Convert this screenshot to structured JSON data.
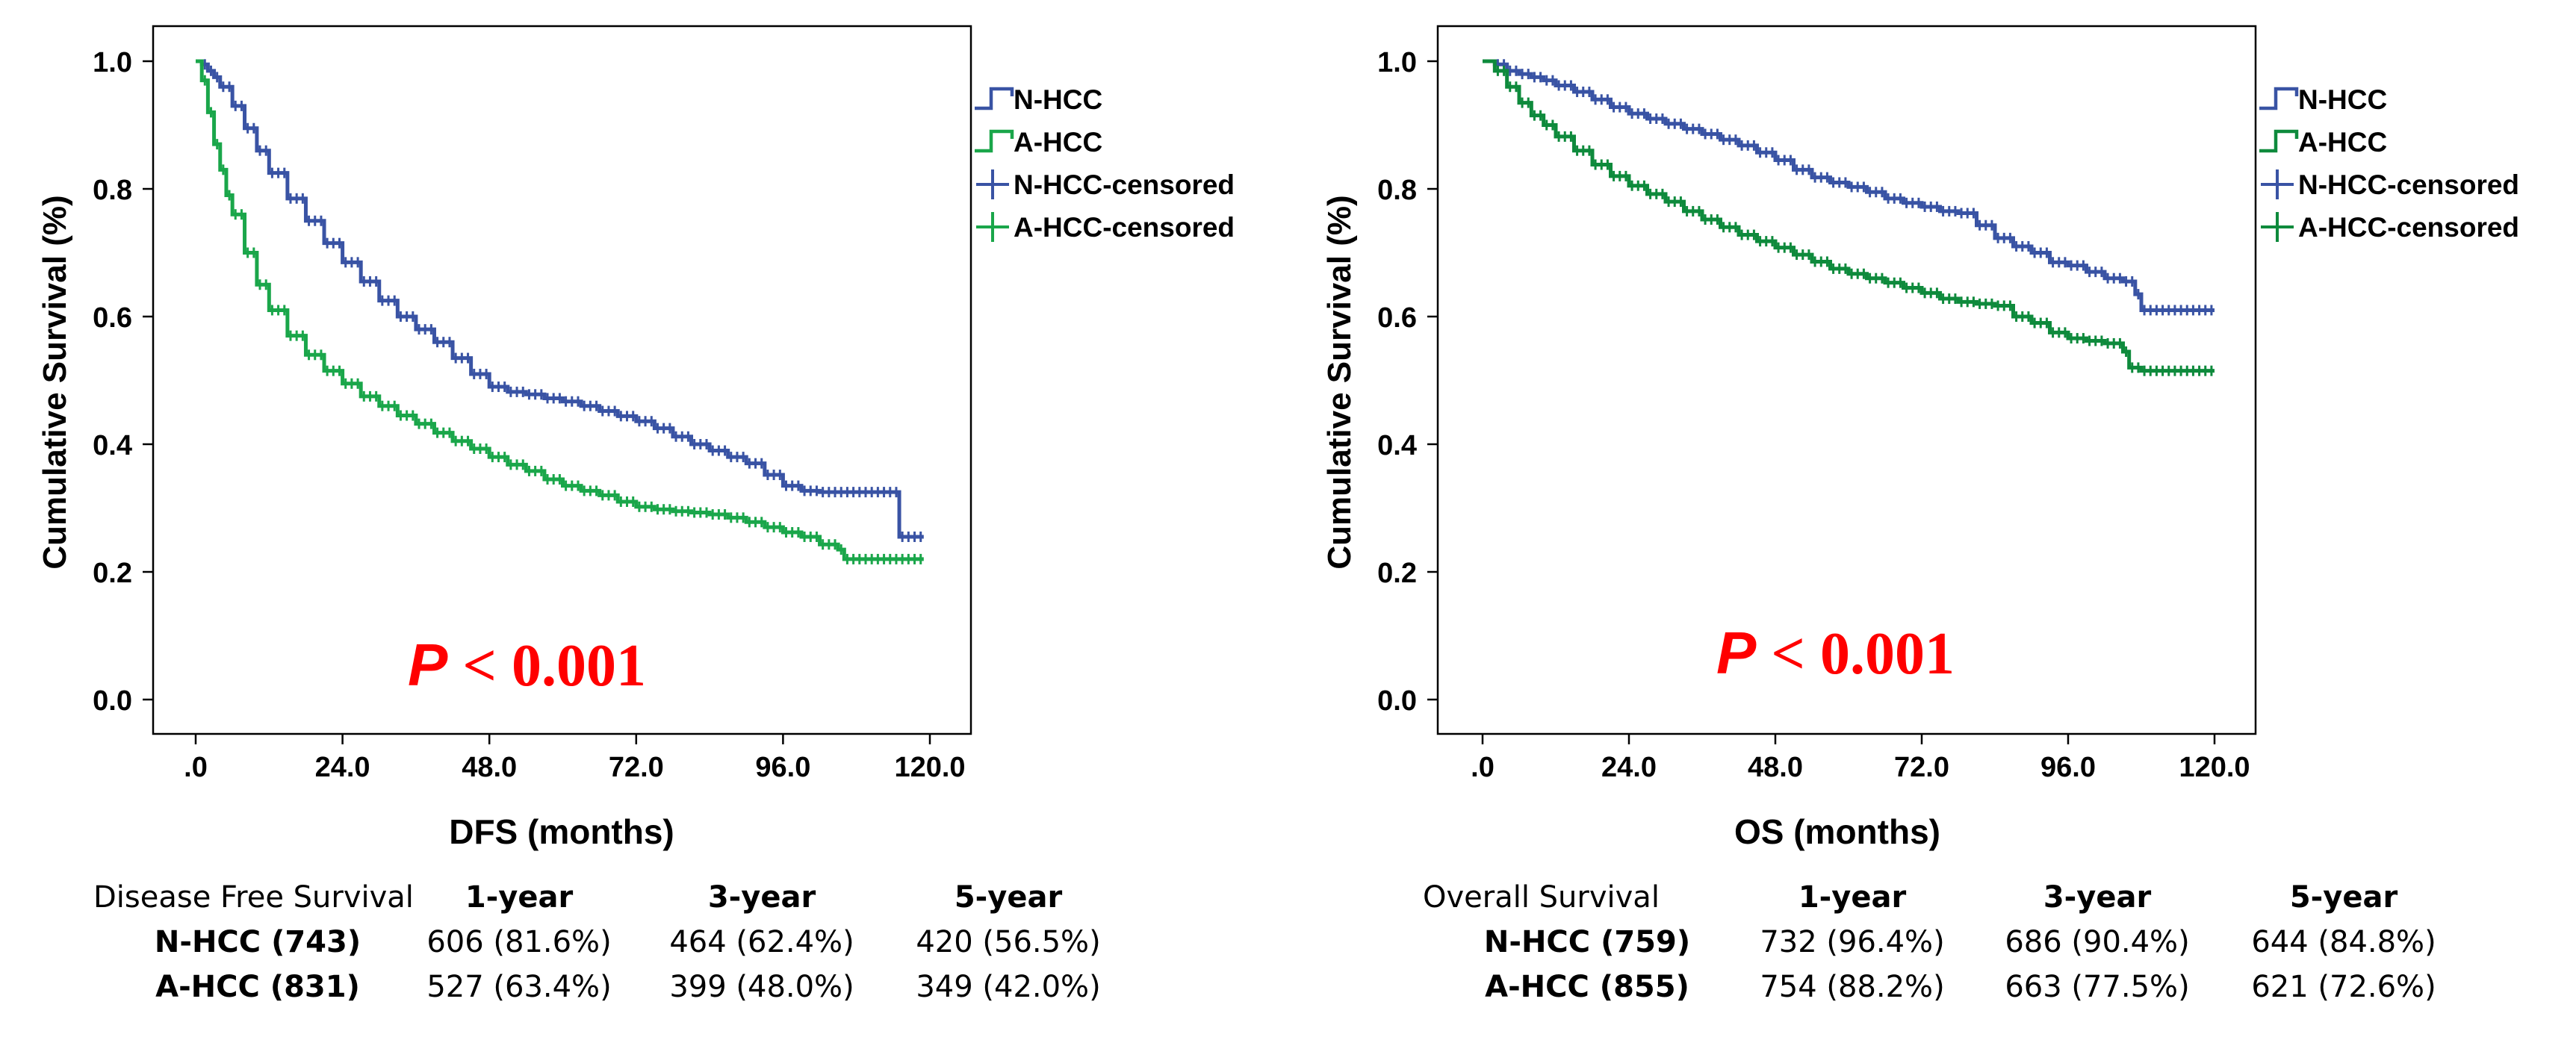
{
  "chart_data": [
    {
      "type": "line",
      "ylabel": "Cumulative Survival (%)",
      "xlabel": "DFS (months)",
      "xlim": [
        0,
        120
      ],
      "ylim": [
        0,
        1
      ],
      "x_ticks": [
        ".0",
        "24.0",
        "48.0",
        "72.0",
        "96.0",
        "120.0"
      ],
      "y_ticks": [
        "0.0",
        "0.2",
        "0.4",
        "0.6",
        "0.8",
        "1.0"
      ],
      "p_prefix": "P",
      "p_text": " < 0.001",
      "legend": [
        "N-HCC",
        "A-HCC",
        "N-HCC-censored",
        "A-HCC-censored"
      ],
      "series": [
        {
          "name": "N-HCC",
          "color": "#3953a4",
          "points": [
            [
              0,
              1.0
            ],
            [
              1,
              0.995
            ],
            [
              2,
              0.985
            ],
            [
              3,
              0.975
            ],
            [
              4,
              0.96
            ],
            [
              6,
              0.93
            ],
            [
              8,
              0.895
            ],
            [
              10,
              0.86
            ],
            [
              12,
              0.825
            ],
            [
              15,
              0.785
            ],
            [
              18,
              0.75
            ],
            [
              21,
              0.715
            ],
            [
              24,
              0.685
            ],
            [
              27,
              0.655
            ],
            [
              30,
              0.625
            ],
            [
              33,
              0.6
            ],
            [
              36,
              0.58
            ],
            [
              39,
              0.56
            ],
            [
              42,
              0.535
            ],
            [
              45,
              0.51
            ],
            [
              48,
              0.49
            ],
            [
              51,
              0.482
            ],
            [
              54,
              0.478
            ],
            [
              57,
              0.472
            ],
            [
              60,
              0.467
            ],
            [
              63,
              0.46
            ],
            [
              66,
              0.452
            ],
            [
              69,
              0.444
            ],
            [
              72,
              0.436
            ],
            [
              75,
              0.425
            ],
            [
              78,
              0.412
            ],
            [
              81,
              0.4
            ],
            [
              84,
              0.39
            ],
            [
              87,
              0.38
            ],
            [
              90,
              0.37
            ],
            [
              93,
              0.352
            ],
            [
              96,
              0.335
            ],
            [
              99,
              0.327
            ],
            [
              102,
              0.325
            ],
            [
              105,
              0.325
            ],
            [
              108,
              0.325
            ],
            [
              111,
              0.325
            ],
            [
              114,
              0.325
            ],
            [
              115,
              0.255
            ],
            [
              119,
              0.255
            ]
          ]
        },
        {
          "name": "A-HCC",
          "color": "#1aa64a",
          "points": [
            [
              0,
              1.0
            ],
            [
              1,
              0.97
            ],
            [
              2,
              0.92
            ],
            [
              3,
              0.87
            ],
            [
              4,
              0.83
            ],
            [
              5,
              0.79
            ],
            [
              6,
              0.76
            ],
            [
              8,
              0.7
            ],
            [
              10,
              0.65
            ],
            [
              12,
              0.61
            ],
            [
              15,
              0.57
            ],
            [
              18,
              0.54
            ],
            [
              21,
              0.515
            ],
            [
              24,
              0.495
            ],
            [
              27,
              0.475
            ],
            [
              30,
              0.46
            ],
            [
              33,
              0.445
            ],
            [
              36,
              0.432
            ],
            [
              39,
              0.418
            ],
            [
              42,
              0.405
            ],
            [
              45,
              0.393
            ],
            [
              48,
              0.38
            ],
            [
              51,
              0.368
            ],
            [
              54,
              0.358
            ],
            [
              57,
              0.345
            ],
            [
              60,
              0.335
            ],
            [
              63,
              0.327
            ],
            [
              66,
              0.32
            ],
            [
              69,
              0.31
            ],
            [
              72,
              0.302
            ],
            [
              75,
              0.298
            ],
            [
              78,
              0.295
            ],
            [
              81,
              0.293
            ],
            [
              84,
              0.29
            ],
            [
              87,
              0.285
            ],
            [
              90,
              0.278
            ],
            [
              93,
              0.27
            ],
            [
              96,
              0.262
            ],
            [
              99,
              0.255
            ],
            [
              102,
              0.243
            ],
            [
              105,
              0.235
            ],
            [
              106,
              0.22
            ],
            [
              110,
              0.22
            ],
            [
              114,
              0.22
            ],
            [
              119,
              0.22
            ]
          ]
        }
      ],
      "table": {
        "header": [
          "Disease Free Survival",
          "1-year",
          "3-year",
          "5-year"
        ],
        "rows": [
          [
            "N-HCC (743)",
            "606 (81.6%)",
            "464 (62.4%)",
            "420 (56.5%)"
          ],
          [
            "A-HCC (831)",
            "527 (63.4%)",
            "399 (48.0%)",
            "349 (42.0%)"
          ]
        ]
      }
    },
    {
      "type": "line",
      "ylabel": "Cumulative Survival (%)",
      "xlabel": "OS (months)",
      "xlim": [
        0,
        120
      ],
      "ylim": [
        0,
        1
      ],
      "x_ticks": [
        ".0",
        "24.0",
        "48.0",
        "72.0",
        "96.0",
        "120.0"
      ],
      "y_ticks": [
        "0.0",
        "0.2",
        "0.4",
        "0.6",
        "0.8",
        "1.0"
      ],
      "p_prefix": "P",
      "p_text": " < 0.001",
      "legend": [
        "N-HCC",
        "A-HCC",
        "N-HCC-censored",
        "A-HCC-censored"
      ],
      "series": [
        {
          "name": "N-HCC",
          "color": "#3953a4",
          "points": [
            [
              0,
              1.0
            ],
            [
              2,
              0.995
            ],
            [
              4,
              0.985
            ],
            [
              6,
              0.98
            ],
            [
              8,
              0.975
            ],
            [
              10,
              0.97
            ],
            [
              12,
              0.962
            ],
            [
              15,
              0.952
            ],
            [
              18,
              0.94
            ],
            [
              21,
              0.928
            ],
            [
              24,
              0.918
            ],
            [
              27,
              0.91
            ],
            [
              30,
              0.902
            ],
            [
              33,
              0.894
            ],
            [
              36,
              0.886
            ],
            [
              39,
              0.877
            ],
            [
              42,
              0.868
            ],
            [
              45,
              0.857
            ],
            [
              48,
              0.845
            ],
            [
              51,
              0.83
            ],
            [
              54,
              0.818
            ],
            [
              57,
              0.81
            ],
            [
              60,
              0.803
            ],
            [
              63,
              0.795
            ],
            [
              66,
              0.785
            ],
            [
              69,
              0.778
            ],
            [
              72,
              0.772
            ],
            [
              75,
              0.765
            ],
            [
              78,
              0.762
            ],
            [
              81,
              0.743
            ],
            [
              84,
              0.723
            ],
            [
              87,
              0.71
            ],
            [
              90,
              0.7
            ],
            [
              93,
              0.685
            ],
            [
              96,
              0.68
            ],
            [
              99,
              0.67
            ],
            [
              102,
              0.66
            ],
            [
              105,
              0.655
            ],
            [
              107,
              0.635
            ],
            [
              108,
              0.61
            ],
            [
              111,
              0.61
            ],
            [
              115,
              0.61
            ],
            [
              120,
              0.61
            ]
          ]
        },
        {
          "name": "A-HCC",
          "color": "#0e8a3c",
          "points": [
            [
              0,
              1.0
            ],
            [
              2,
              0.985
            ],
            [
              4,
              0.96
            ],
            [
              6,
              0.935
            ],
            [
              8,
              0.915
            ],
            [
              10,
              0.9
            ],
            [
              12,
              0.882
            ],
            [
              15,
              0.86
            ],
            [
              18,
              0.838
            ],
            [
              21,
              0.82
            ],
            [
              24,
              0.805
            ],
            [
              27,
              0.792
            ],
            [
              30,
              0.78
            ],
            [
              33,
              0.765
            ],
            [
              36,
              0.752
            ],
            [
              39,
              0.74
            ],
            [
              42,
              0.728
            ],
            [
              45,
              0.718
            ],
            [
              48,
              0.708
            ],
            [
              51,
              0.697
            ],
            [
              54,
              0.686
            ],
            [
              57,
              0.675
            ],
            [
              60,
              0.667
            ],
            [
              63,
              0.66
            ],
            [
              66,
              0.653
            ],
            [
              69,
              0.645
            ],
            [
              72,
              0.637
            ],
            [
              75,
              0.628
            ],
            [
              78,
              0.623
            ],
            [
              81,
              0.62
            ],
            [
              84,
              0.617
            ],
            [
              87,
              0.6
            ],
            [
              90,
              0.59
            ],
            [
              93,
              0.575
            ],
            [
              96,
              0.566
            ],
            [
              99,
              0.562
            ],
            [
              102,
              0.558
            ],
            [
              105,
              0.545
            ],
            [
              106,
              0.52
            ],
            [
              108,
              0.515
            ],
            [
              112,
              0.515
            ],
            [
              116,
              0.515
            ],
            [
              120,
              0.515
            ]
          ]
        }
      ],
      "table": {
        "header": [
          "Overall Survival",
          "1-year",
          "3-year",
          "5-year"
        ],
        "rows": [
          [
            "N-HCC (759)",
            "732 (96.4%)",
            "686 (90.4%)",
            "644 (84.8%)"
          ],
          [
            "A-HCC (855)",
            "754 (88.2%)",
            "663 (77.5%)",
            "621 (72.6%)"
          ]
        ]
      }
    }
  ]
}
